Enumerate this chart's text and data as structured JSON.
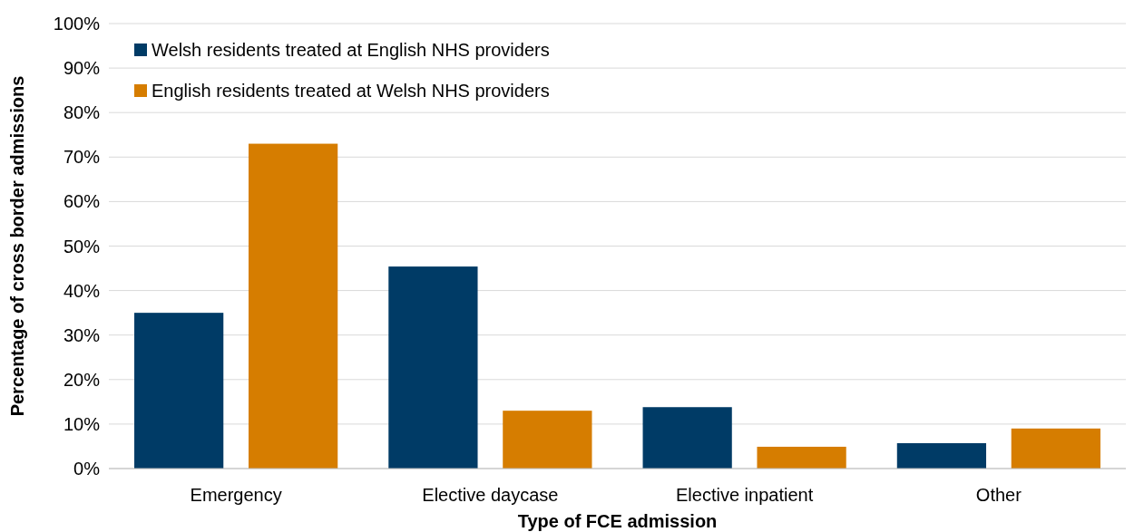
{
  "chart_data": {
    "type": "bar",
    "xlabel": "Type of FCE admission",
    "ylabel": "Percentage of cross border admissions",
    "categories": [
      "Emergency",
      "Elective daycase",
      "Elective inpatient",
      "Other"
    ],
    "series": [
      {
        "name": "Welsh residents treated at English NHS providers",
        "color": "#003b66",
        "values": [
          35,
          45.4,
          13.8,
          5.7
        ]
      },
      {
        "name": "English residents treated at Welsh NHS providers",
        "color": "#d67d00",
        "values": [
          73,
          13,
          4.9,
          9
        ]
      }
    ],
    "ylim": [
      0,
      100
    ],
    "yticks": [
      {
        "value": 0,
        "label": "0%"
      },
      {
        "value": 10,
        "label": "10%"
      },
      {
        "value": 20,
        "label": "20%"
      },
      {
        "value": 30,
        "label": "30%"
      },
      {
        "value": 40,
        "label": "40%"
      },
      {
        "value": 50,
        "label": "50%"
      },
      {
        "value": 60,
        "label": "60%"
      },
      {
        "value": 70,
        "label": "70%"
      },
      {
        "value": 80,
        "label": "80%"
      },
      {
        "value": 90,
        "label": "90%"
      },
      {
        "value": 100,
        "label": "100%"
      }
    ],
    "grid": "y",
    "legend": "top left"
  }
}
